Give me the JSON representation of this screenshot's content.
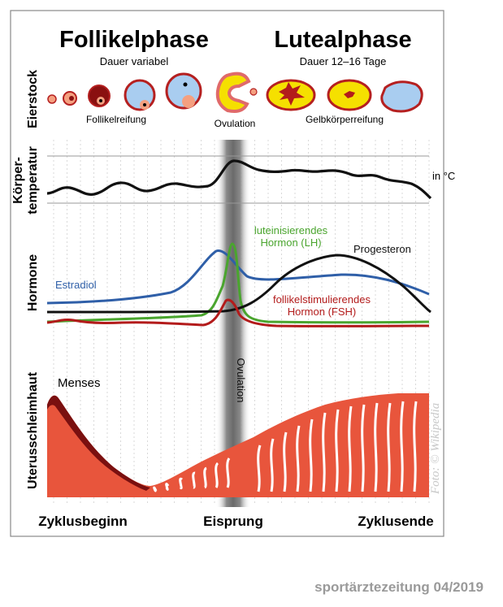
{
  "phases": {
    "follicular": {
      "title": "Follikelphase",
      "duration": "Dauer variabel"
    },
    "luteal": {
      "title": "Lutealphase",
      "duration": "Dauer 12–16 Tage"
    }
  },
  "rows": {
    "ovary": "Eierstock",
    "temp_line1": "Körper-",
    "temp_line2": "temperatur",
    "hormones": "Hormone",
    "endometrium": "Uterusschleimhaut"
  },
  "ovary_labels": {
    "maturation": "Follikelreifung",
    "ovulation": "Ovulation",
    "corpus_luteum": "Gelbkörperreifung"
  },
  "temperature": {
    "unit": "in °C"
  },
  "hormones": {
    "lh_line1": "luteinisierendes",
    "lh_line2": "Hormon (LH)",
    "progesterone": "Progesteron",
    "estradiol": "Estradiol",
    "fsh_line1": "follikelstimulierendes",
    "fsh_line2": "Hormon (FSH)"
  },
  "endometrium": {
    "menses": "Menses"
  },
  "ovulation_band_label": "Ovulation",
  "cycle_axis": {
    "start": "Zyklusbeginn",
    "ovulation": "Eisprung",
    "end": "Zyklusende"
  },
  "credit": "Foto: © Wikipedia",
  "journal": "sportärztezeitung 04/2019",
  "colors": {
    "estradiol": "#2f5fa8",
    "lh": "#4aa52e",
    "fsh": "#b31b1b",
    "progesterone": "#111111",
    "temperature": "#111111",
    "endometrium": "#e8553c",
    "menses": "#7a1010",
    "follicle_fill": "#a9cdf0",
    "corpus_luteum": "#f5e000"
  }
}
